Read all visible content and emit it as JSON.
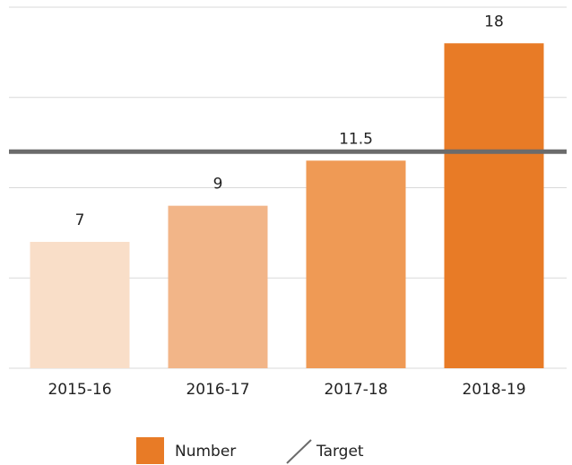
{
  "chart_data": {
    "type": "bar",
    "categories": [
      "2015-16",
      "2016-17",
      "2017-18",
      "2018-19"
    ],
    "series": [
      {
        "name": "Number",
        "color": "#e87b26",
        "colors": [
          "#f9dec8",
          "#f2b588",
          "#ef9a55",
          "#e87b26"
        ],
        "values": [
          7,
          9,
          11.5,
          18
        ]
      }
    ],
    "target": {
      "name": "Target",
      "value": 12,
      "color": "#6b6b6b"
    },
    "ylim": [
      0,
      20
    ],
    "yticks": [
      0,
      5,
      10,
      15,
      20
    ],
    "grid": true,
    "legend": "bottom"
  }
}
